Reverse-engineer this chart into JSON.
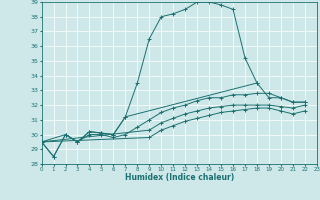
{
  "xlabel": "Humidex (Indice chaleur)",
  "xlim": [
    0,
    23
  ],
  "ylim": [
    28,
    39
  ],
  "yticks": [
    28,
    29,
    30,
    31,
    32,
    33,
    34,
    35,
    36,
    37,
    38,
    39
  ],
  "xticks": [
    0,
    1,
    2,
    3,
    4,
    5,
    6,
    7,
    8,
    9,
    10,
    11,
    12,
    13,
    14,
    15,
    16,
    17,
    18,
    19,
    20,
    21,
    22,
    23
  ],
  "bg_color": "#cee8ea",
  "grid_color": "#ffffff",
  "line_color": "#1a7070",
  "series": [
    {
      "x": [
        0,
        1,
        2,
        3,
        4,
        5,
        6,
        7,
        8,
        9,
        10,
        11,
        12,
        13,
        14,
        15,
        16,
        17,
        18
      ],
      "y": [
        29.5,
        28.5,
        30.0,
        29.5,
        30.2,
        30.1,
        30.0,
        31.2,
        33.5,
        36.5,
        38.0,
        38.2,
        38.5,
        39.0,
        39.0,
        38.8,
        38.5,
        35.2,
        33.5
      ]
    },
    {
      "x": [
        0,
        1,
        2,
        3,
        4,
        5,
        6,
        7,
        18,
        19,
        20,
        21,
        22
      ],
      "y": [
        29.5,
        28.5,
        30.0,
        29.5,
        30.2,
        30.1,
        30.0,
        31.2,
        33.5,
        32.5,
        32.5,
        32.2,
        32.2
      ]
    },
    {
      "x": [
        0,
        2,
        3,
        4,
        5,
        6,
        7,
        8,
        9,
        10,
        11,
        12,
        13,
        14,
        15,
        16,
        17,
        18,
        19,
        20,
        21,
        22
      ],
      "y": [
        29.5,
        30.0,
        29.5,
        30.0,
        30.0,
        29.8,
        30.0,
        30.5,
        31.0,
        31.5,
        31.8,
        32.0,
        32.3,
        32.5,
        32.5,
        32.7,
        32.7,
        32.8,
        32.8,
        32.5,
        32.2,
        32.2
      ]
    },
    {
      "x": [
        0,
        9,
        10,
        11,
        12,
        13,
        14,
        15,
        16,
        17,
        18,
        19,
        20,
        21,
        22
      ],
      "y": [
        29.5,
        30.3,
        30.8,
        31.1,
        31.4,
        31.6,
        31.8,
        31.9,
        32.0,
        32.0,
        32.0,
        32.0,
        31.9,
        31.8,
        32.0
      ]
    },
    {
      "x": [
        0,
        9,
        10,
        11,
        12,
        13,
        14,
        15,
        16,
        17,
        18,
        19,
        20,
        21,
        22
      ],
      "y": [
        29.5,
        29.8,
        30.3,
        30.6,
        30.9,
        31.1,
        31.3,
        31.5,
        31.6,
        31.7,
        31.8,
        31.8,
        31.6,
        31.4,
        31.6
      ]
    }
  ]
}
